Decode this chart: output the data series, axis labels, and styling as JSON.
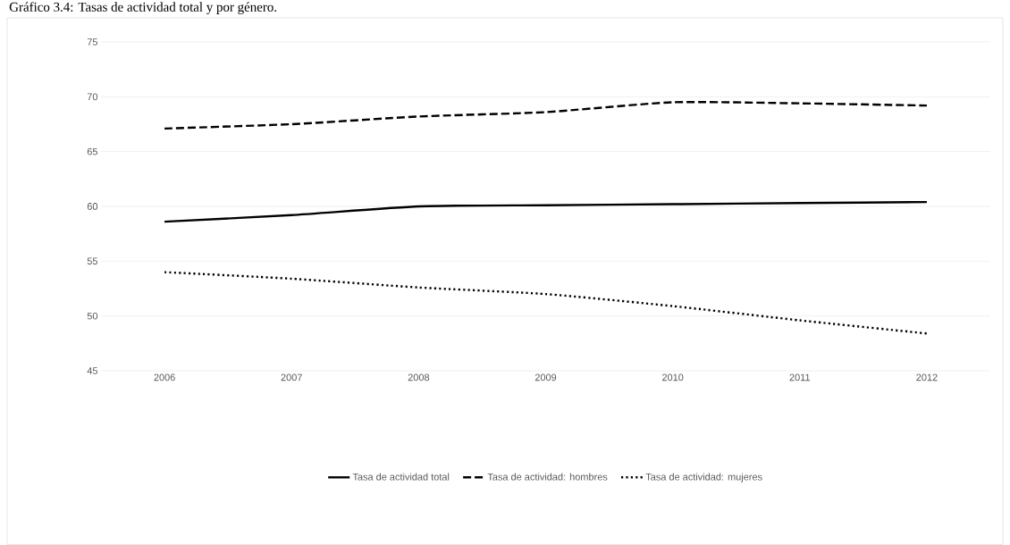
{
  "chart_data": {
    "type": "line",
    "title": "Gráfico 3.4: Tasas de actividad total y por género.",
    "categories": [
      "2006",
      "2007",
      "2008",
      "2009",
      "2010",
      "2011",
      "2012"
    ],
    "series": [
      {
        "name": "Tasa de actividad total",
        "color": "#000000",
        "line_style": "solid",
        "values": [
          58.6,
          59.2,
          60.0,
          60.1,
          60.2,
          60.3,
          60.4
        ]
      },
      {
        "name": "Tasa de actividad: hombres",
        "color": "#000000",
        "line_style": "dashed",
        "values": [
          67.1,
          67.5,
          68.2,
          68.6,
          69.5,
          69.4,
          69.2
        ]
      },
      {
        "name": "Tasa de actividad: mujeres",
        "color": "#000000",
        "line_style": "dotted",
        "values": [
          54.0,
          53.4,
          52.6,
          52.0,
          50.9,
          49.6,
          48.4
        ]
      }
    ],
    "ylim": [
      45,
      75
    ],
    "yticks": [
      45,
      50,
      55,
      60,
      65,
      70,
      75
    ],
    "grid": "y",
    "legend": "bottom",
    "marker": "none"
  }
}
